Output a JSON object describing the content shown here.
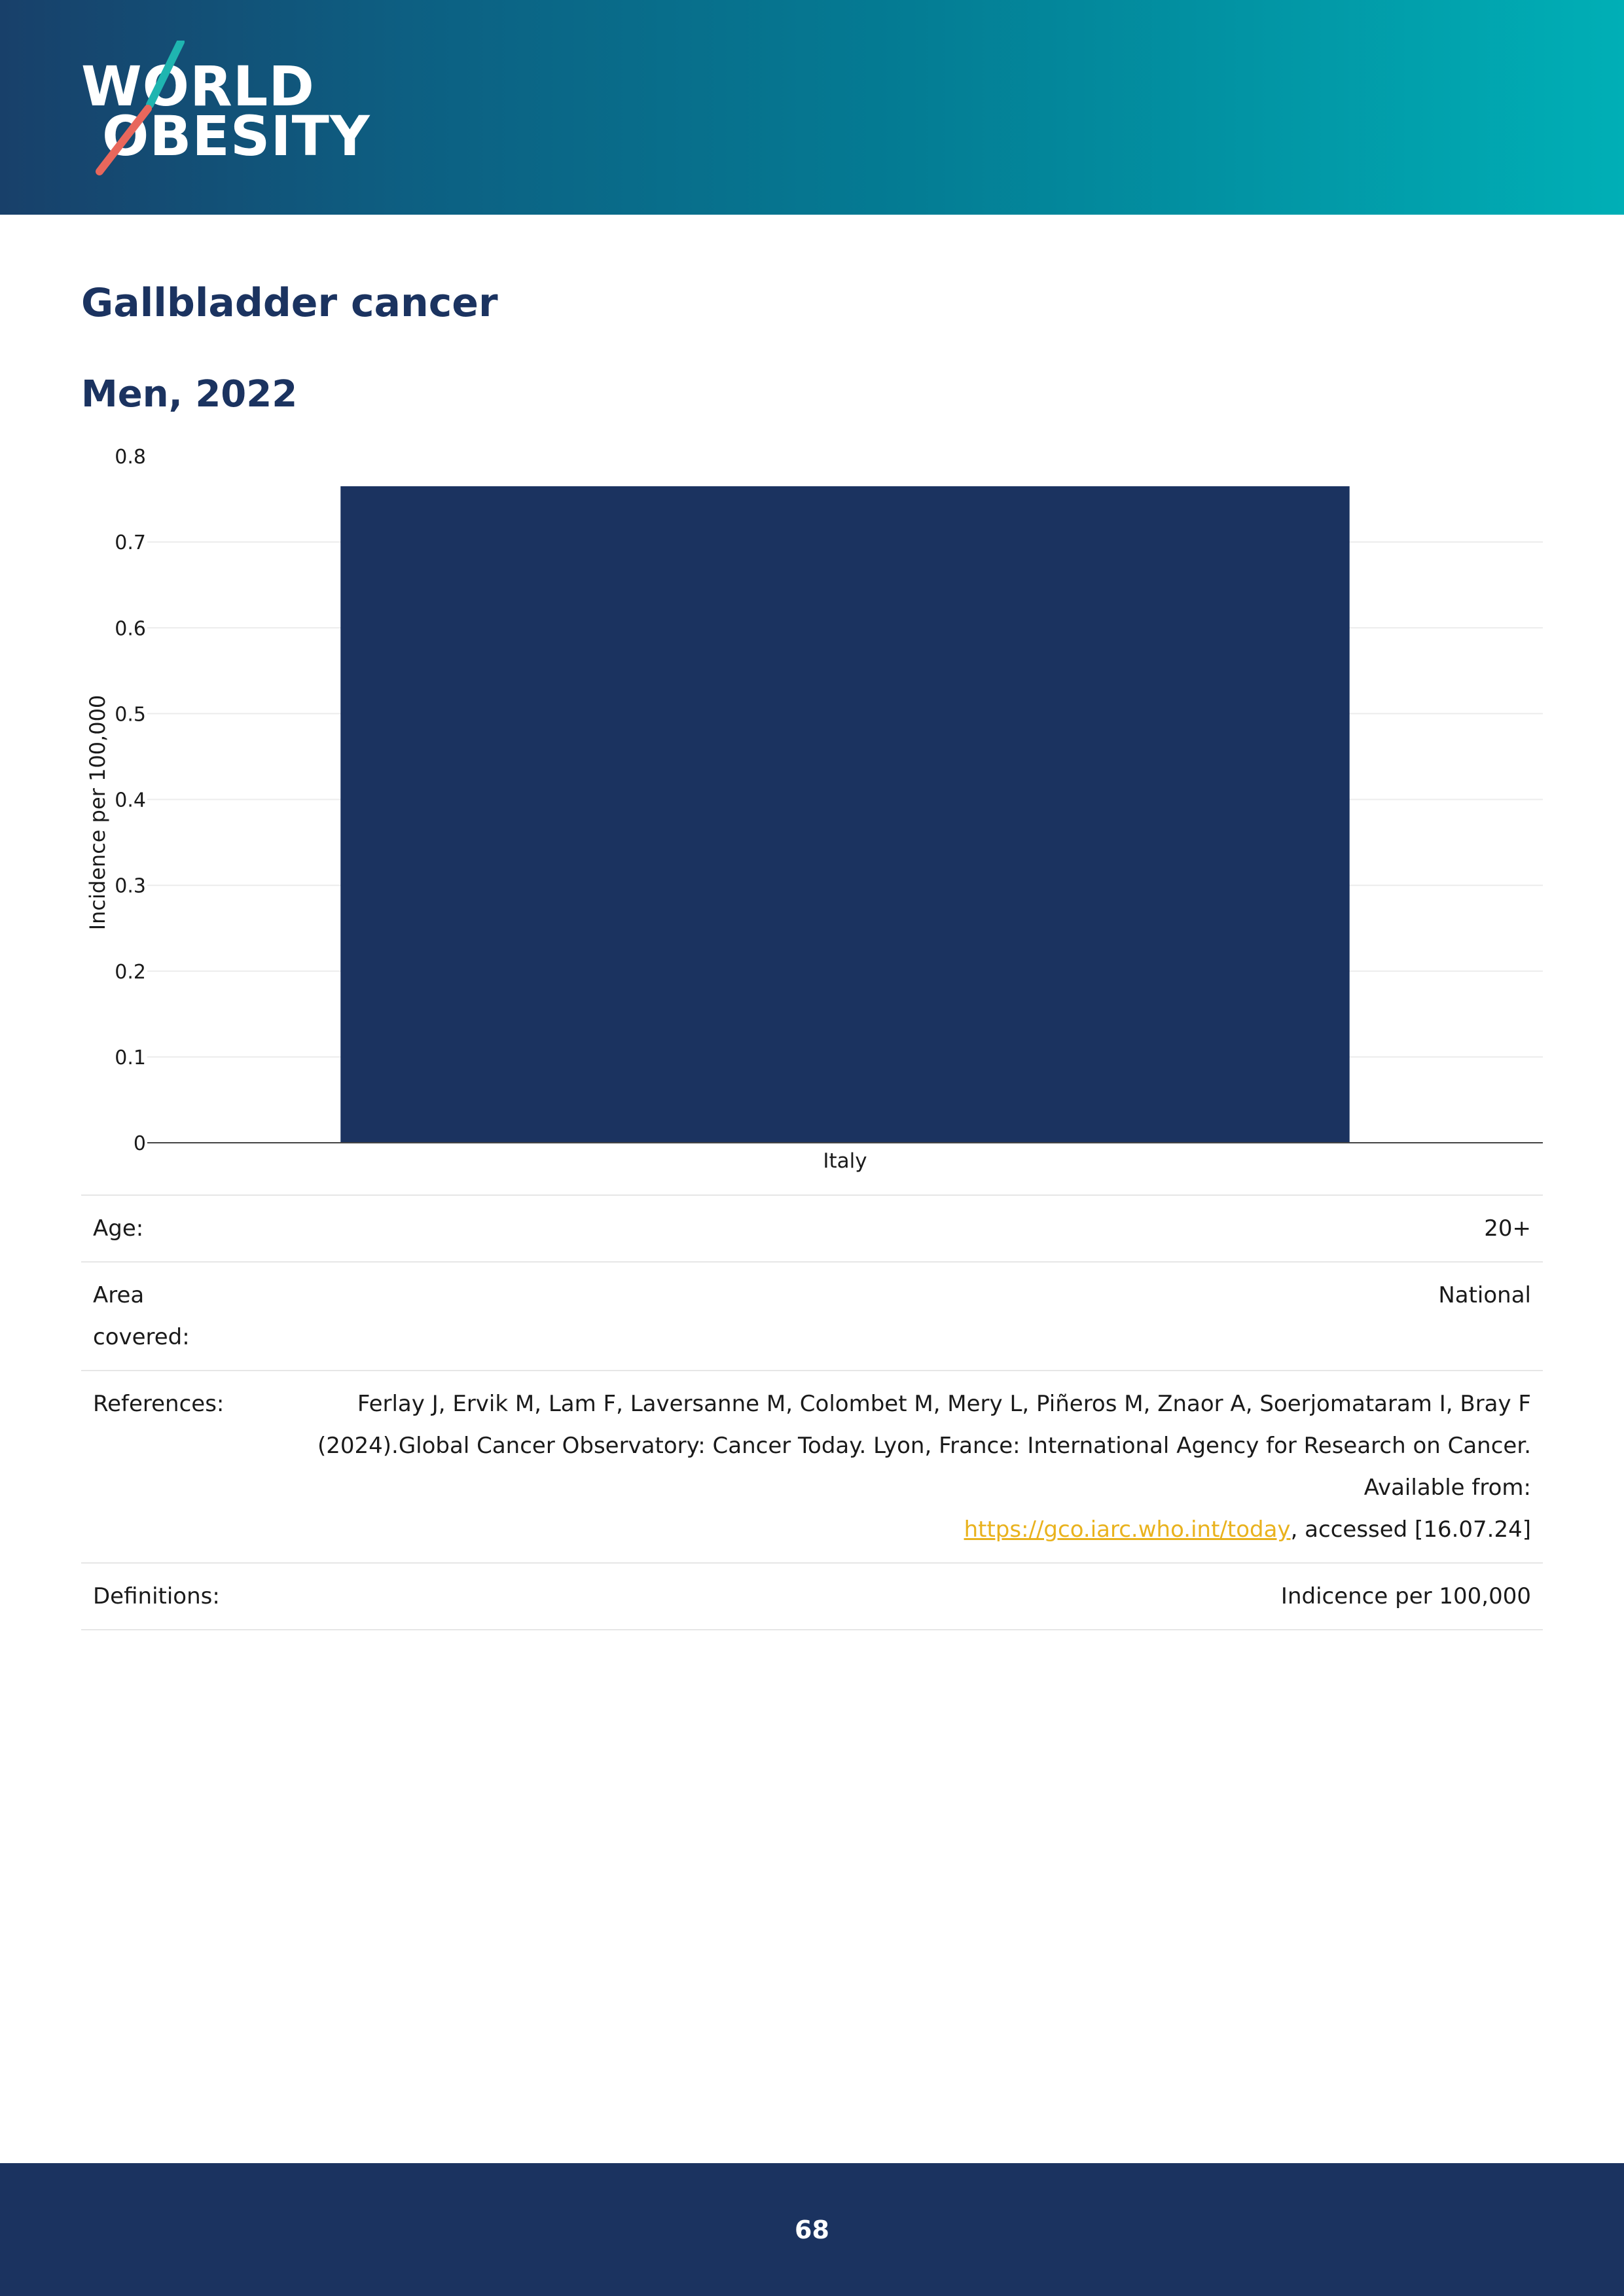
{
  "brand": {
    "logo_line1": "WORLD",
    "logo_line2": "OBESITY",
    "colors": {
      "navy": "#1b3360",
      "teal": "#00afb6",
      "slash_teal": "#1fb5b0",
      "slash_coral": "#e8675c"
    }
  },
  "page": {
    "title": "Gallbladder cancer",
    "page_number": "68"
  },
  "chart_data": {
    "type": "bar",
    "title": "Men, 2022",
    "categories": [
      "Italy"
    ],
    "values": [
      0.765
    ],
    "ylabel": "Incidence per 100,000",
    "xlabel": "",
    "ylim": [
      0,
      0.8
    ],
    "yticks": [
      "0",
      "0.1",
      "0.2",
      "0.3",
      "0.4",
      "0.5",
      "0.6",
      "0.7",
      "0.8"
    ],
    "bar_color": "#1b3360",
    "grid": true
  },
  "info": {
    "age_label": "Age:",
    "age_value": "20+",
    "area_label": "Area covered:",
    "area_value": "National",
    "references_label": "References:",
    "references_text": "Ferlay J, Ervik M, Lam F, Laversanne M, Colombet M, Mery L, Piñeros M, Znaor A, Soerjomataram I, Bray F (2024).Global Cancer Observatory: Cancer Today. Lyon, France: International Agency for Research on Cancer. Available from:",
    "references_link": "https://gco.iarc.who.int/today",
    "references_suffix": ", accessed [16.07.24]",
    "definitions_label": "Definitions:",
    "definitions_value": "Indicence per 100,000"
  }
}
